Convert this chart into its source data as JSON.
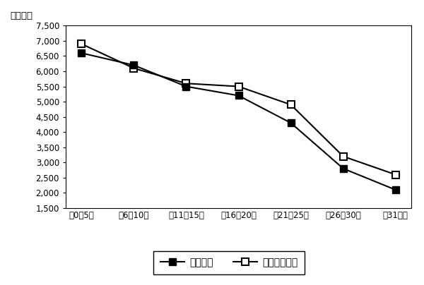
{
  "categories": [
    "筑0～5年",
    "筑6～10年",
    "筑11～15年",
    "筑16～20年",
    "筑21～25年",
    "筑26～30年",
    "筑31年～"
  ],
  "series_contracted": [
    6600,
    6200,
    5500,
    5200,
    4300,
    2800,
    2100
  ],
  "series_new": [
    6900,
    6100,
    5600,
    5500,
    4900,
    3200,
    2600
  ],
  "color_contracted": "#000000",
  "color_new": "#000000",
  "marker_contracted": "s",
  "marker_new": "s",
  "ylabel": "（万円）",
  "ylim_min": 1500,
  "ylim_max": 7500,
  "yticks": [
    1500,
    2000,
    2500,
    3000,
    3500,
    4000,
    4500,
    5000,
    5500,
    6000,
    6500,
    7000,
    7500
  ],
  "legend_contracted": "成約物件",
  "legend_new": "新規登録物件",
  "background_color": "#ffffff",
  "plot_bg_color": "#ffffff",
  "border_color": "#000000",
  "line_width": 1.5,
  "marker_size": 7,
  "font_size_tick": 8.5,
  "font_size_ylabel": 9.5,
  "font_size_legend": 10,
  "ytick_comma_sep": true
}
